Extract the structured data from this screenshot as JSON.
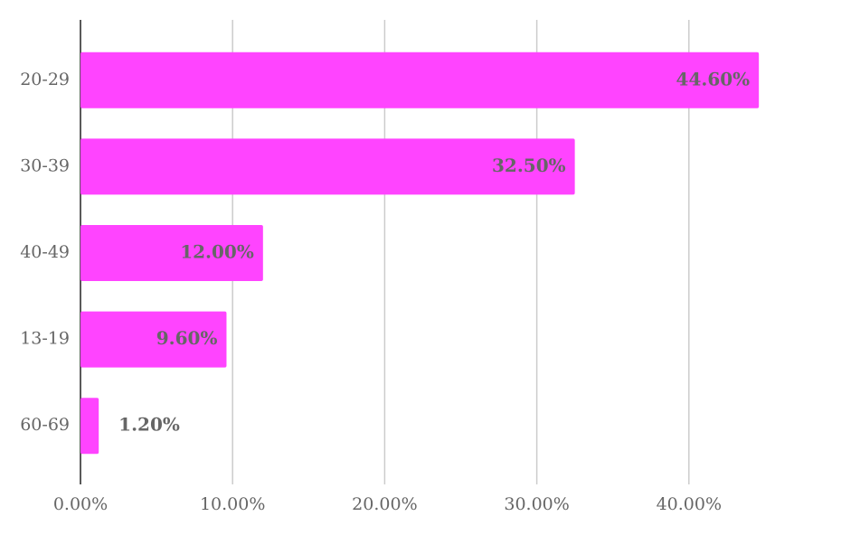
{
  "chart_data": {
    "type": "hbar",
    "categories": [
      "20-29",
      "30-39",
      "40-49",
      "13-19",
      "60-69"
    ],
    "values": [
      44.6,
      32.5,
      12.0,
      9.6,
      1.2
    ],
    "value_labels": [
      "44.60%",
      "32.50%",
      "12.00%",
      "9.60%",
      "1.20%"
    ],
    "color": "#ff44ff",
    "xlim": [
      0,
      50
    ],
    "xticks": [
      {
        "value": 0,
        "label": "0.00%"
      },
      {
        "value": 10,
        "label": "10.00%"
      },
      {
        "value": 20,
        "label": "20.00%"
      },
      {
        "value": 30,
        "label": "30.00%"
      },
      {
        "value": 40,
        "label": "40.00%"
      }
    ],
    "grid": true
  }
}
